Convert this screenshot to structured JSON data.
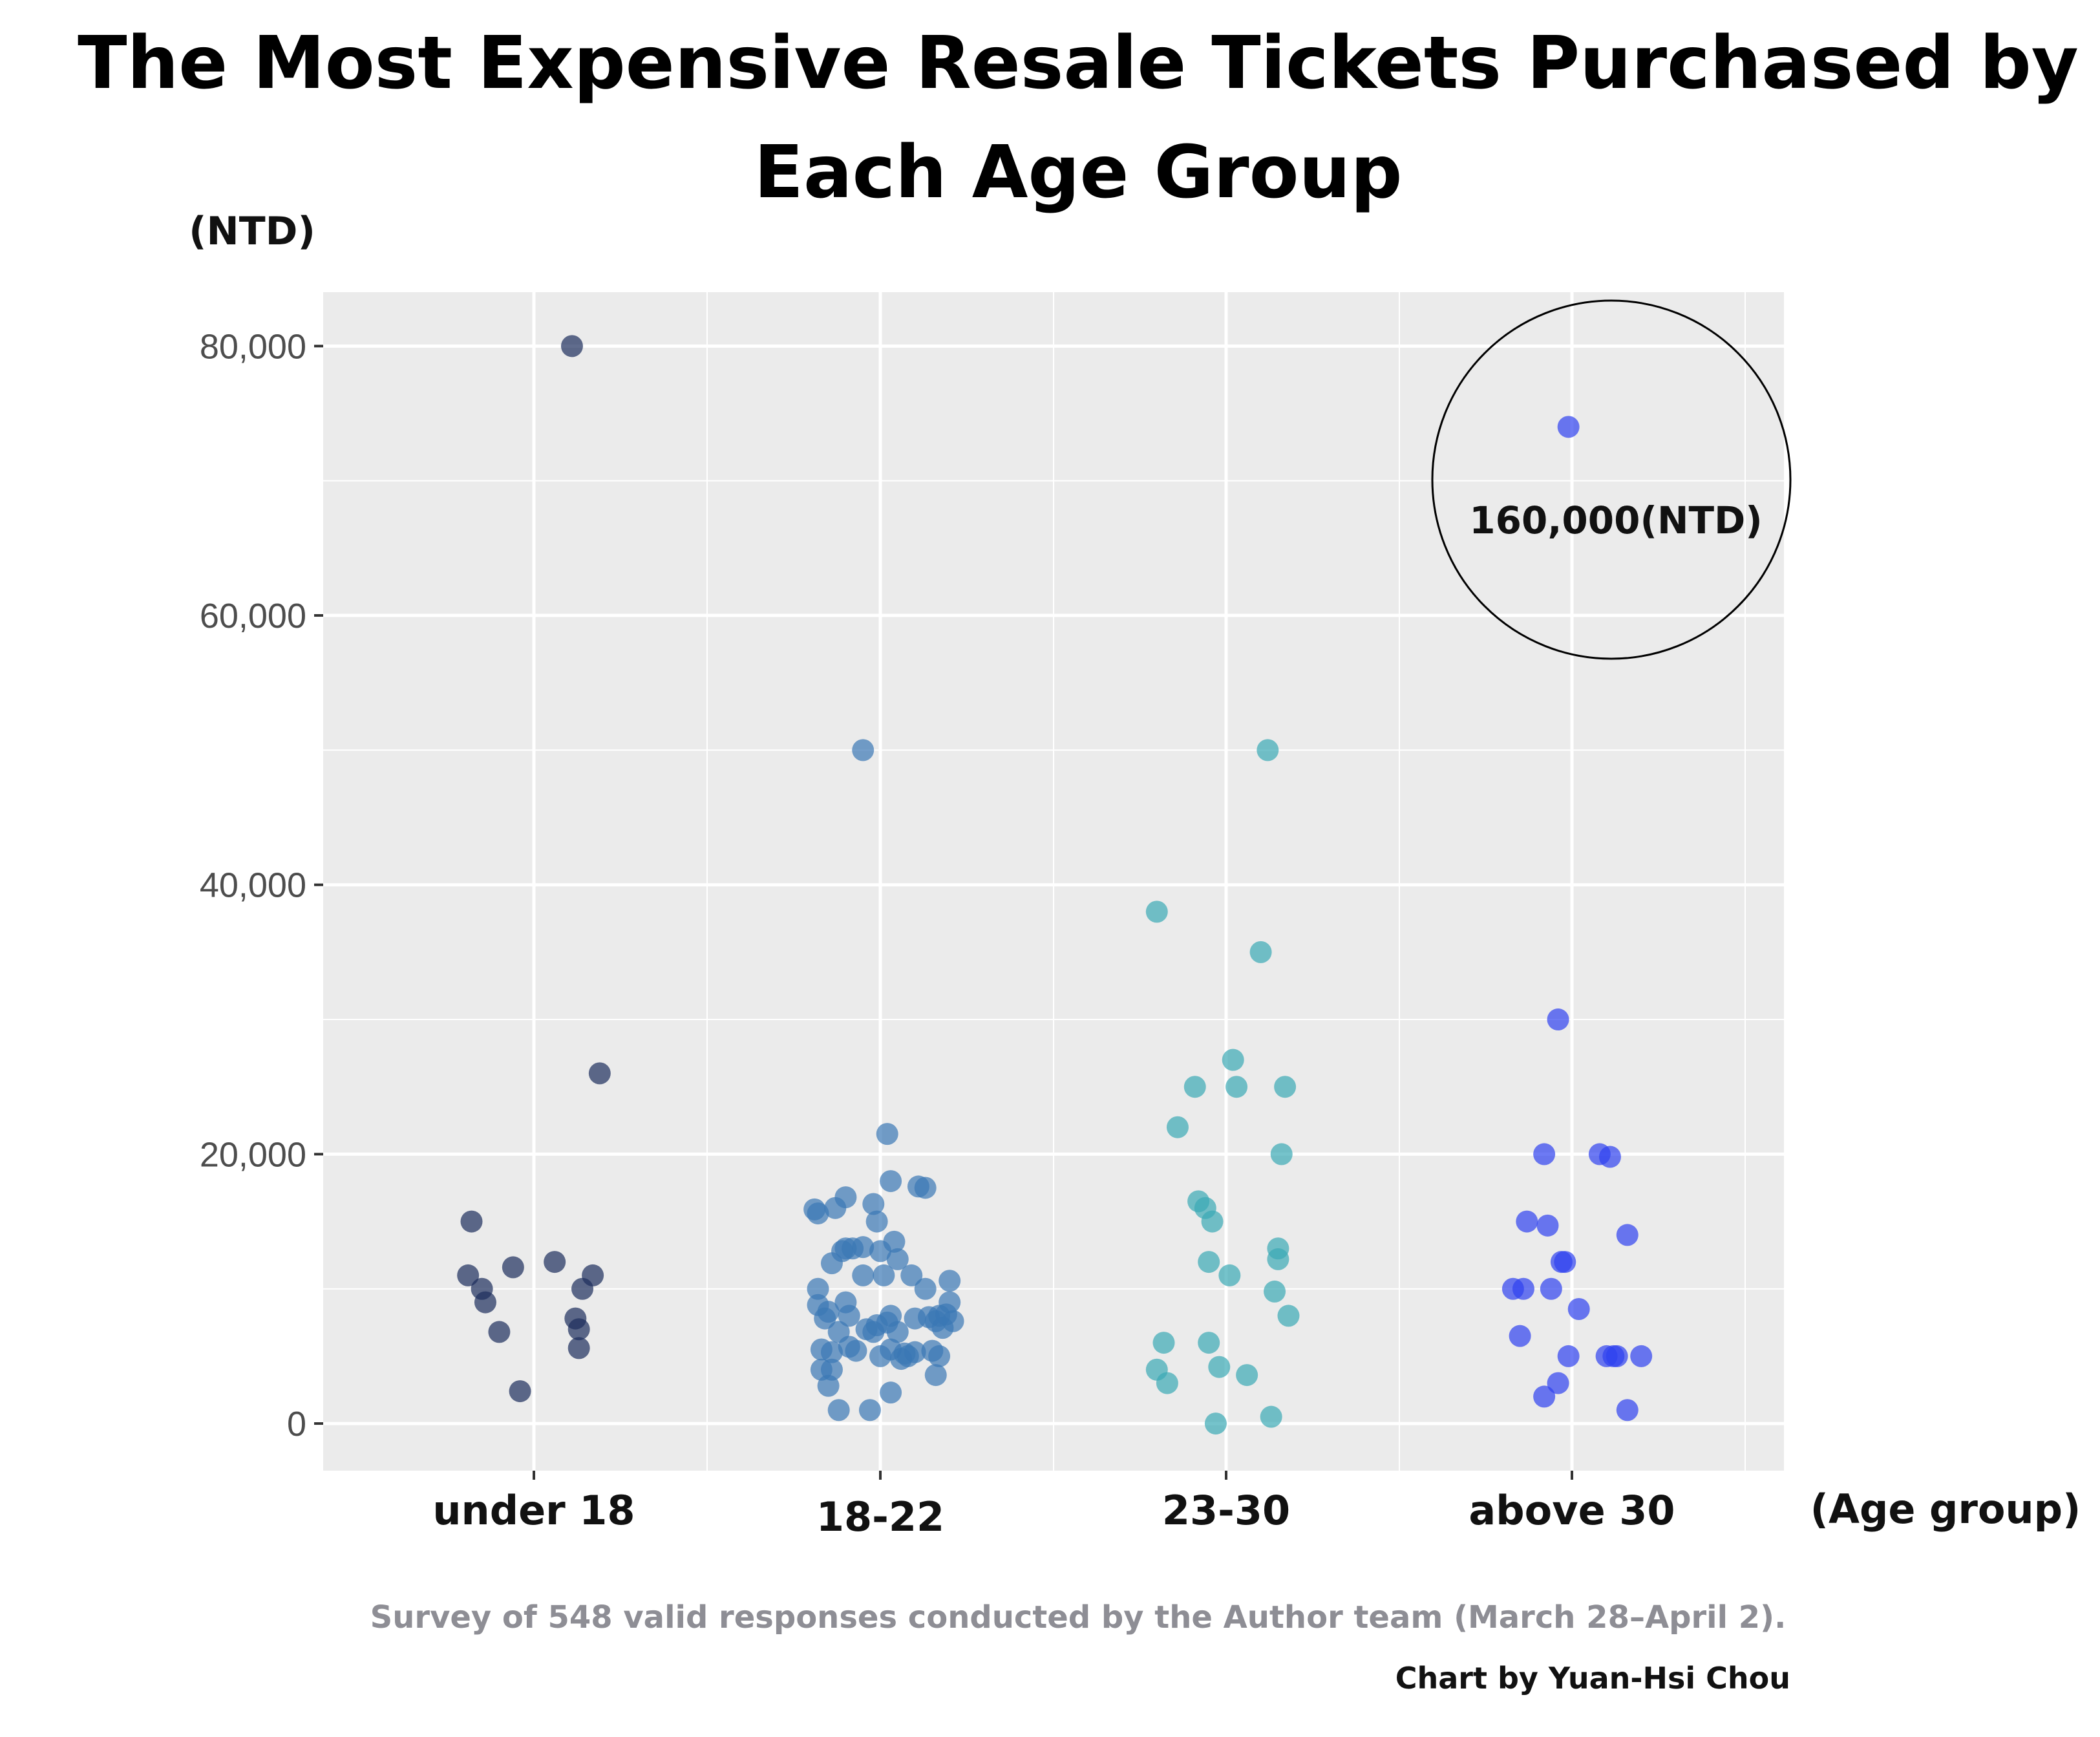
{
  "chart_data": {
    "type": "scatter",
    "title_lines": [
      "The Most Expensive Resale Tickets Purchased by",
      "Each Age Group"
    ],
    "ylabel": "(NTD)",
    "xlabel": "(Age group)",
    "ylim": [
      -3500,
      84000
    ],
    "y_ticks": [
      0,
      20000,
      40000,
      60000,
      80000
    ],
    "y_tick_labels": [
      "0",
      "20,000",
      "40,000",
      "60,000",
      "80,000"
    ],
    "grid": true,
    "categories": [
      "under 18",
      "18-22",
      "23-30",
      "above 30"
    ],
    "series": [
      {
        "color": "#1c2e5c",
        "points": [
          [
            -0.18,
            15000
          ],
          [
            -0.19,
            11000
          ],
          [
            -0.15,
            10000
          ],
          [
            -0.14,
            9000
          ],
          [
            -0.1,
            6800
          ],
          [
            -0.06,
            11600
          ],
          [
            -0.04,
            2400
          ],
          [
            0.06,
            12000
          ],
          [
            0.11,
            80000
          ],
          [
            0.12,
            7800
          ],
          [
            0.13,
            5600
          ],
          [
            0.13,
            7000
          ],
          [
            0.14,
            10000
          ],
          [
            0.17,
            11000
          ],
          [
            0.19,
            26000
          ]
        ]
      },
      {
        "color": "#3a78b5",
        "points": [
          [
            -0.19,
            15900
          ],
          [
            -0.18,
            15600
          ],
          [
            -0.18,
            10000
          ],
          [
            -0.18,
            8800
          ],
          [
            -0.17,
            4000
          ],
          [
            -0.17,
            5500
          ],
          [
            -0.16,
            7800
          ],
          [
            -0.15,
            8300
          ],
          [
            -0.15,
            2800
          ],
          [
            -0.14,
            4000
          ],
          [
            -0.14,
            5300
          ],
          [
            -0.14,
            11900
          ],
          [
            -0.13,
            16000
          ],
          [
            -0.12,
            6800
          ],
          [
            -0.12,
            1000
          ],
          [
            -0.11,
            12800
          ],
          [
            -0.1,
            16800
          ],
          [
            -0.1,
            9000
          ],
          [
            -0.1,
            13000
          ],
          [
            -0.09,
            8000
          ],
          [
            -0.09,
            5700
          ],
          [
            -0.08,
            13000
          ],
          [
            -0.07,
            5400
          ],
          [
            -0.05,
            50000
          ],
          [
            -0.05,
            13100
          ],
          [
            -0.05,
            11000
          ],
          [
            -0.04,
            7000
          ],
          [
            -0.03,
            1000
          ],
          [
            -0.02,
            16300
          ],
          [
            -0.02,
            6800
          ],
          [
            -0.01,
            15000
          ],
          [
            -0.01,
            7300
          ],
          [
            0.0,
            5000
          ],
          [
            0.0,
            12800
          ],
          [
            0.01,
            11000
          ],
          [
            0.02,
            21500
          ],
          [
            0.02,
            7500
          ],
          [
            0.03,
            2300
          ],
          [
            0.03,
            8000
          ],
          [
            0.03,
            5500
          ],
          [
            0.03,
            18000
          ],
          [
            0.04,
            13500
          ],
          [
            0.05,
            12200
          ],
          [
            0.05,
            6800
          ],
          [
            0.06,
            4800
          ],
          [
            0.07,
            5200
          ],
          [
            0.08,
            5000
          ],
          [
            0.09,
            11000
          ],
          [
            0.1,
            7800
          ],
          [
            0.1,
            5300
          ],
          [
            0.11,
            17600
          ],
          [
            0.13,
            10000
          ],
          [
            0.13,
            17500
          ],
          [
            0.14,
            7900
          ],
          [
            0.15,
            5400
          ],
          [
            0.16,
            7600
          ],
          [
            0.16,
            3600
          ],
          [
            0.17,
            8000
          ],
          [
            0.17,
            5000
          ],
          [
            0.18,
            7100
          ],
          [
            0.19,
            8100
          ],
          [
            0.2,
            9000
          ],
          [
            0.2,
            10600
          ],
          [
            0.21,
            7600
          ]
        ]
      },
      {
        "color": "#3aaab5",
        "points": [
          [
            -0.2,
            38000
          ],
          [
            -0.2,
            4000
          ],
          [
            -0.18,
            6000
          ],
          [
            -0.17,
            3000
          ],
          [
            -0.14,
            22000
          ],
          [
            -0.09,
            25000
          ],
          [
            -0.08,
            16500
          ],
          [
            -0.06,
            16000
          ],
          [
            -0.05,
            12000
          ],
          [
            -0.05,
            6000
          ],
          [
            -0.04,
            15000
          ],
          [
            -0.03,
            0
          ],
          [
            -0.02,
            4200
          ],
          [
            0.01,
            11000
          ],
          [
            0.02,
            27000
          ],
          [
            0.03,
            25000
          ],
          [
            0.06,
            3600
          ],
          [
            0.1,
            35000
          ],
          [
            0.12,
            50000
          ],
          [
            0.13,
            500
          ],
          [
            0.14,
            9800
          ],
          [
            0.15,
            13000
          ],
          [
            0.15,
            12200
          ],
          [
            0.16,
            20000
          ],
          [
            0.17,
            25000
          ],
          [
            0.18,
            8000
          ]
        ]
      },
      {
        "color": "#2f42f0",
        "points": [
          [
            -0.17,
            10000
          ],
          [
            -0.15,
            6500
          ],
          [
            -0.14,
            10000
          ],
          [
            -0.13,
            15000
          ],
          [
            -0.08,
            2000
          ],
          [
            -0.08,
            20000
          ],
          [
            -0.07,
            14700
          ],
          [
            -0.06,
            10000
          ],
          [
            -0.04,
            30000
          ],
          [
            -0.04,
            3000
          ],
          [
            -0.03,
            12000
          ],
          [
            -0.02,
            12000
          ],
          [
            -0.01,
            5000
          ],
          [
            -0.01,
            74000
          ],
          [
            0.02,
            8500
          ],
          [
            0.08,
            20000
          ],
          [
            0.1,
            5000
          ],
          [
            0.11,
            19800
          ],
          [
            0.12,
            5000
          ],
          [
            0.13,
            5000
          ],
          [
            0.16,
            14000
          ],
          [
            0.16,
            1000
          ],
          [
            0.2,
            5000
          ]
        ]
      }
    ],
    "annotation": {
      "text": "160,000(NTD)",
      "category": "above 30",
      "x_offset": -0.01,
      "y": 74000
    },
    "source_note": "Survey of 548 valid responses conducted by the Author team (March 28–April 2).",
    "credit": "Chart by Yuan-Hsi Chou"
  }
}
